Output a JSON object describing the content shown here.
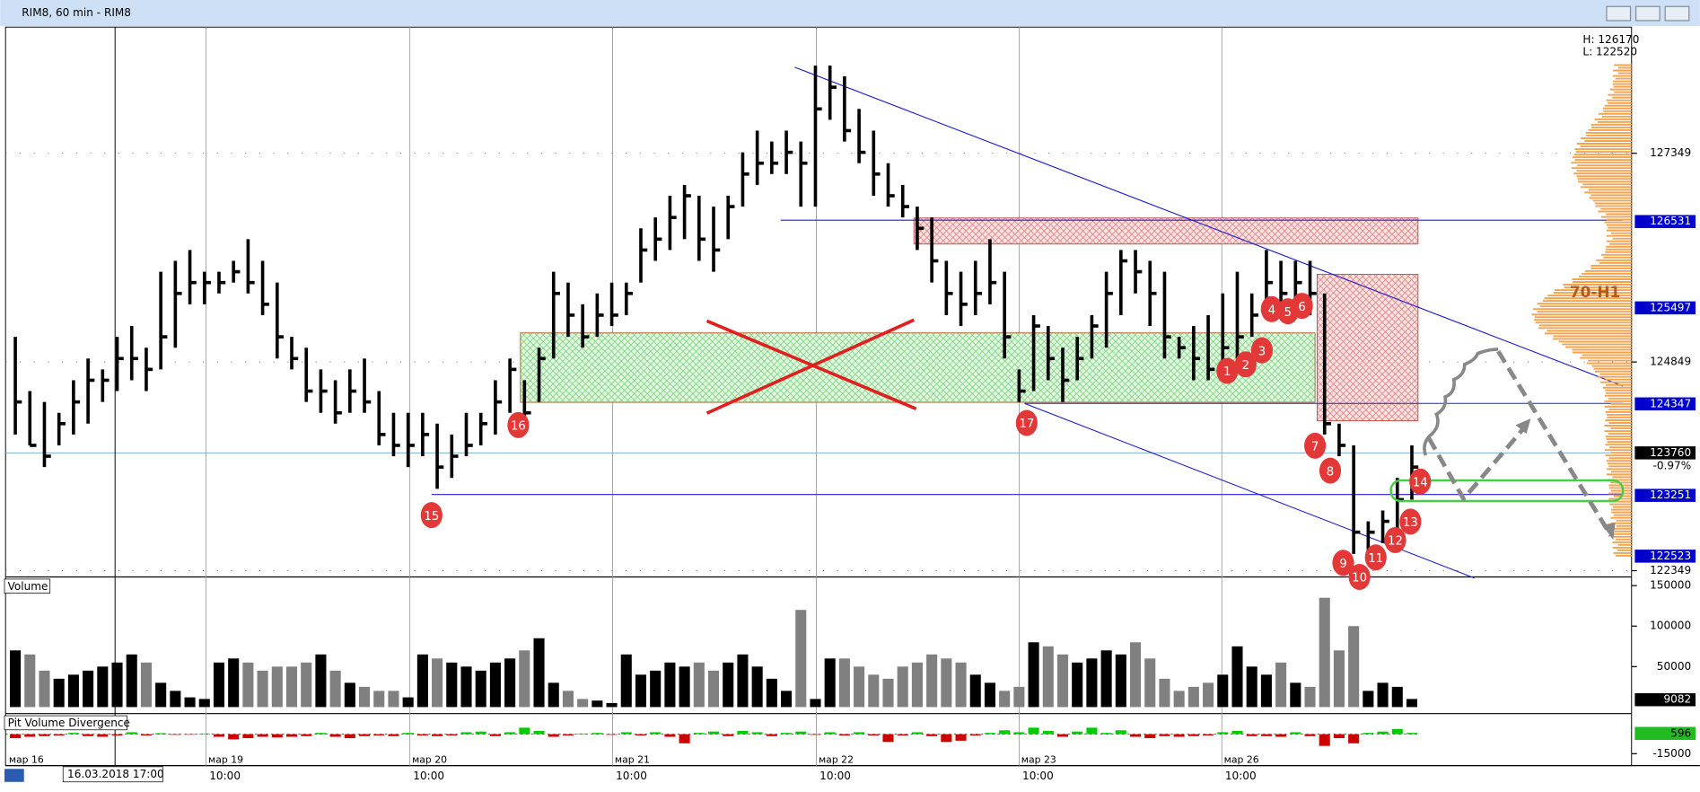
{
  "window_title": "RIM8, 60 min - RIM8",
  "chart_data": [
    {
      "type": "hlc",
      "high": [
        125150,
        124500,
        124370,
        124240,
        124630,
        124890,
        124760,
        125150,
        125280,
        125020,
        125930,
        126060,
        126190,
        125930,
        125930,
        126060,
        126320,
        126060,
        125800,
        125150,
        125020,
        124760,
        124630,
        124760,
        124890,
        124500,
        124240,
        124240,
        124240,
        124110,
        123980,
        124240,
        124240,
        124630,
        124890,
        124630,
        125020,
        125930,
        125800,
        125540,
        125670,
        125800,
        125800,
        126450,
        126580,
        126840,
        126970,
        126840,
        126710,
        126840,
        127360,
        127620,
        127490,
        127620,
        127490,
        128400,
        128400,
        128270,
        127880,
        127620,
        127230,
        126970,
        126710,
        126580,
        126060,
        125930,
        126060,
        126320,
        125930,
        124760,
        125410,
        125280,
        125020,
        125150,
        125410,
        125930,
        126190,
        126190,
        126060,
        125930,
        125150,
        125280,
        125410,
        125670,
        125930,
        125670,
        126190,
        126060,
        126060,
        126060,
        125670,
        124110,
        123850,
        122940,
        123070,
        123460,
        123850
      ],
      "low": [
        123980,
        123850,
        123590,
        123850,
        123980,
        124110,
        124370,
        124500,
        124630,
        124500,
        124760,
        125020,
        125540,
        125540,
        125670,
        125800,
        125670,
        125410,
        124890,
        124760,
        124370,
        124240,
        124110,
        124240,
        124240,
        123850,
        123720,
        123590,
        123720,
        123330,
        123460,
        123720,
        123850,
        123980,
        124240,
        124110,
        124370,
        124890,
        125150,
        125020,
        125150,
        125280,
        125410,
        125800,
        126060,
        126190,
        126320,
        126060,
        125930,
        126320,
        126710,
        126970,
        127100,
        127100,
        126710,
        126710,
        127750,
        127490,
        127230,
        126840,
        126710,
        126580,
        126190,
        125800,
        125410,
        125280,
        125410,
        125540,
        124890,
        124370,
        124500,
        124630,
        124370,
        124630,
        124890,
        125020,
        125410,
        125670,
        125280,
        124890,
        124890,
        124630,
        124630,
        124760,
        124890,
        125150,
        125410,
        125540,
        125540,
        125410,
        123980,
        123720,
        122550,
        122550,
        122680,
        122810,
        123200
      ],
      "close": [
        124370,
        123850,
        123720,
        124110,
        124370,
        124630,
        124630,
        124890,
        124890,
        124760,
        125150,
        125670,
        125800,
        125800,
        125800,
        125930,
        125800,
        125540,
        125150,
        124890,
        124500,
        124500,
        124240,
        124500,
        124370,
        123980,
        123850,
        123850,
        123980,
        123590,
        123720,
        123850,
        124110,
        124370,
        124760,
        124240,
        124890,
        125670,
        125410,
        125150,
        125410,
        125410,
        125670,
        126190,
        126320,
        126580,
        126840,
        126320,
        126190,
        126710,
        127100,
        127230,
        127230,
        127360,
        127230,
        127880,
        128140,
        127620,
        127360,
        127100,
        126840,
        126710,
        126450,
        126060,
        125670,
        125540,
        125670,
        125800,
        125150,
        124500,
        125280,
        124890,
        124630,
        124890,
        125280,
        125670,
        126060,
        125930,
        125670,
        125150,
        125020,
        124890,
        124760,
        125020,
        125150,
        125410,
        125800,
        125670,
        125800,
        125670,
        124110,
        123850,
        122810,
        122810,
        122940,
        123200,
        123590
      ],
      "ylim": [
        122300,
        128860
      ],
      "yticks": [
        127349,
        124849,
        122349
      ],
      "price_levels": [
        126531,
        125497,
        124347,
        123251,
        122523
      ],
      "level_color": "#0000cc",
      "last_price": 123760,
      "change_label": "-0.97%",
      "hl_labels": [
        "H: 126170",
        "L: 122520"
      ],
      "zone_label": "70-H1",
      "annotations": [
        "1",
        "2",
        "3",
        "4",
        "5",
        "6",
        "7",
        "8",
        "9",
        "10",
        "11",
        "12",
        "13",
        "14",
        "15",
        "16",
        "17"
      ],
      "date_labels": [
        "мар 16",
        "мар 19",
        "мар 20",
        "мар 21",
        "мар 22",
        "мар 23",
        "мар 26"
      ],
      "time_labels": [
        "10:00",
        "10:00",
        "10:00",
        "10:00",
        "10:00",
        "10:00"
      ],
      "cursor_label": "16.03.2018  17:00"
    },
    {
      "type": "bar",
      "title": "Volume",
      "values": [
        70000,
        65000,
        45000,
        35000,
        40000,
        45000,
        50000,
        55000,
        65000,
        55000,
        30000,
        20000,
        12000,
        10000,
        55000,
        60000,
        55000,
        45000,
        50000,
        50000,
        55000,
        65000,
        45000,
        30000,
        25000,
        20000,
        20000,
        12000,
        65000,
        60000,
        55000,
        50000,
        45000,
        55000,
        60000,
        70000,
        85000,
        30000,
        20000,
        10000,
        8000,
        5000,
        65000,
        40000,
        45000,
        55000,
        50000,
        55000,
        45000,
        55000,
        65000,
        50000,
        35000,
        20000,
        120000,
        10000,
        60000,
        60000,
        50000,
        40000,
        35000,
        50000,
        55000,
        65000,
        60000,
        55000,
        40000,
        30000,
        20000,
        25000,
        80000,
        75000,
        65000,
        55000,
        60000,
        70000,
        65000,
        80000,
        60000,
        35000,
        20000,
        25000,
        30000,
        40000,
        75000,
        50000,
        40000,
        55000,
        30000,
        25000,
        135000,
        70000,
        100000,
        20000,
        30000,
        25000,
        10000
      ],
      "up_color": "#000000",
      "down_color": "#808080",
      "ylim": [
        0,
        150000
      ],
      "yticks": [
        150000,
        100000,
        50000
      ],
      "last_label": 9082
    },
    {
      "type": "bar",
      "title": "Pit Volume Divergence",
      "values": [
        -3000,
        -2000,
        -1500,
        -1000,
        1000,
        -1500,
        -2000,
        -1000,
        1500,
        -1000,
        800,
        -500,
        -400,
        500,
        -2000,
        -4000,
        -3000,
        -2000,
        -2500,
        -2000,
        -1500,
        1000,
        -2000,
        -3000,
        -1500,
        -1000,
        -1500,
        1000,
        -1000,
        -1500,
        -1000,
        1500,
        2000,
        -1500,
        1500,
        5000,
        2500,
        -2000,
        -1000,
        500,
        1000,
        -500,
        1500,
        -1000,
        1500,
        -2000,
        -7000,
        1000,
        2000,
        -1500,
        2500,
        1500,
        -1500,
        1000,
        2000,
        -500,
        1500,
        -1000,
        1500,
        -1000,
        -6000,
        -1000,
        1500,
        -1500,
        -6000,
        -5000,
        -1000,
        1000,
        3000,
        1500,
        5000,
        2500,
        -2000,
        2000,
        5000,
        1000,
        3000,
        -2000,
        -3000,
        -1500,
        -2000,
        -1500,
        -1000,
        1500,
        2500,
        -1500,
        -1500,
        -2000,
        1500,
        -1500,
        -9000,
        -3000,
        -7000,
        1000,
        2000,
        4000,
        1000
      ],
      "pos_color": "#00cc00",
      "neg_color": "#cc0000",
      "ylim": [
        -15000,
        5000
      ],
      "yticks": [
        -15000
      ],
      "last_label": 596
    }
  ]
}
